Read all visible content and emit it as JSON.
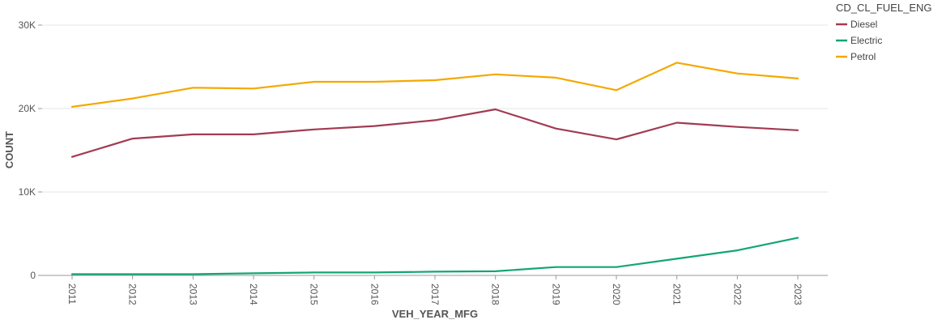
{
  "chart_data": {
    "type": "line",
    "xlabel": "VEH_YEAR_MFG",
    "ylabel": "COUNT",
    "ylim": [
      0,
      30000
    ],
    "yticks": [
      0,
      10000,
      20000,
      30000
    ],
    "ytick_labels": [
      "0",
      "10K",
      "20K",
      "30K"
    ],
    "categories": [
      "2011",
      "2012",
      "2013",
      "2014",
      "2015",
      "2016",
      "2017",
      "2018",
      "2019",
      "2020",
      "2021",
      "2022",
      "2023"
    ],
    "legend_title": "CD_CL_FUEL_ENG",
    "legend_position": "top-right",
    "grid": true,
    "series": [
      {
        "name": "Diesel",
        "color": "#a23b52",
        "values": [
          14200,
          16400,
          16900,
          16900,
          17500,
          17900,
          18600,
          19900,
          17600,
          16300,
          18300,
          17800,
          17400
        ]
      },
      {
        "name": "Electric",
        "color": "#13a577",
        "values": [
          150,
          150,
          150,
          250,
          350,
          350,
          450,
          500,
          1000,
          1000,
          2000,
          3000,
          4500
        ]
      },
      {
        "name": "Petrol",
        "color": "#f5a800",
        "values": [
          20200,
          21200,
          22500,
          22400,
          23200,
          23200,
          23400,
          24100,
          23700,
          22200,
          25500,
          24200,
          23600
        ]
      }
    ]
  }
}
